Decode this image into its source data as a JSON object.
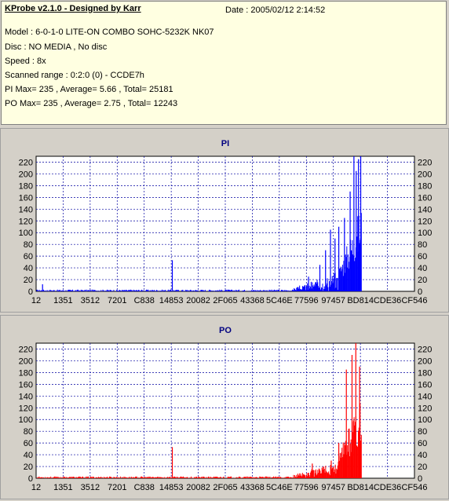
{
  "header": {
    "title": "KProbe v2.1.0 - Designed by Karr",
    "date": "Date : 2005/02/12 2:14:52",
    "lines": [
      "Model : 6-0-1-0 LITE-ON COMBO SOHC-5232K NK07",
      "Disc : NO MEDIA , No disc",
      "Speed : 8x",
      "Scanned range : 0:2:0 (0) - CCDE7h",
      "PI Max= 235 , Average= 5.66 , Total= 25181",
      "PO Max= 235 , Average= 2.75 , Total= 12243"
    ]
  },
  "colors": {
    "pi": "#0000ff",
    "po": "#ff0000",
    "plot_bg": "#ffffff",
    "grid": "#0000a0"
  },
  "chart_data": [
    {
      "type": "bar",
      "title": "PI",
      "color": "#0000ff",
      "ylim": [
        0,
        230
      ],
      "yticks": [
        0,
        20,
        40,
        60,
        80,
        100,
        120,
        140,
        160,
        180,
        200,
        220
      ],
      "xticks": [
        "12",
        "1351",
        "3512",
        "7201",
        "C838",
        "14853",
        "20082",
        "2F065",
        "43368",
        "5C46E",
        "77596",
        "97457",
        "BD814",
        "CDE36",
        "CF546"
      ],
      "xlim": [
        0,
        1
      ],
      "data_fraction": 0.86,
      "peaks": [
        {
          "x": 0.017,
          "y": 12
        },
        {
          "x": 0.36,
          "y": 53
        },
        {
          "x": 0.72,
          "y": 25
        },
        {
          "x": 0.75,
          "y": 45
        },
        {
          "x": 0.765,
          "y": 70
        },
        {
          "x": 0.778,
          "y": 105
        },
        {
          "x": 0.79,
          "y": 90
        },
        {
          "x": 0.8,
          "y": 110
        },
        {
          "x": 0.815,
          "y": 125
        },
        {
          "x": 0.83,
          "y": 170
        },
        {
          "x": 0.84,
          "y": 230
        },
        {
          "x": 0.846,
          "y": 205
        },
        {
          "x": 0.852,
          "y": 225
        },
        {
          "x": 0.858,
          "y": 235
        }
      ]
    },
    {
      "type": "bar",
      "title": "PO",
      "color": "#ff0000",
      "ylim": [
        0,
        230
      ],
      "yticks": [
        0,
        20,
        40,
        60,
        80,
        100,
        120,
        140,
        160,
        180,
        200,
        220
      ],
      "xticks": [
        "12",
        "1351",
        "3512",
        "7201",
        "C838",
        "14853",
        "20082",
        "2F065",
        "43368",
        "5C46E",
        "77596",
        "97457",
        "BD814",
        "CDE36",
        "CF546"
      ],
      "xlim": [
        0,
        1
      ],
      "data_fraction": 0.86,
      "peaks": [
        {
          "x": 0.36,
          "y": 53
        },
        {
          "x": 0.73,
          "y": 25
        },
        {
          "x": 0.78,
          "y": 30
        },
        {
          "x": 0.8,
          "y": 60
        },
        {
          "x": 0.82,
          "y": 185
        },
        {
          "x": 0.835,
          "y": 210
        },
        {
          "x": 0.845,
          "y": 235
        },
        {
          "x": 0.855,
          "y": 190
        }
      ]
    }
  ]
}
